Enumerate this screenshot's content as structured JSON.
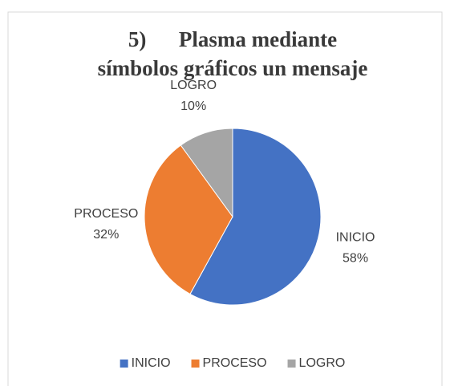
{
  "chart_data": {
    "type": "pie",
    "title": [
      "5)      Plasma mediante",
      "símbolos gráficos un mensaje"
    ],
    "categories": [
      "INICIO",
      "PROCESO",
      "LOGRO"
    ],
    "values": [
      58,
      32,
      10
    ],
    "value_labels": [
      "58%",
      "32%",
      "10%"
    ],
    "colors": [
      "#4472c4",
      "#ed7d31",
      "#a5a5a5"
    ],
    "legend": "bottom"
  }
}
